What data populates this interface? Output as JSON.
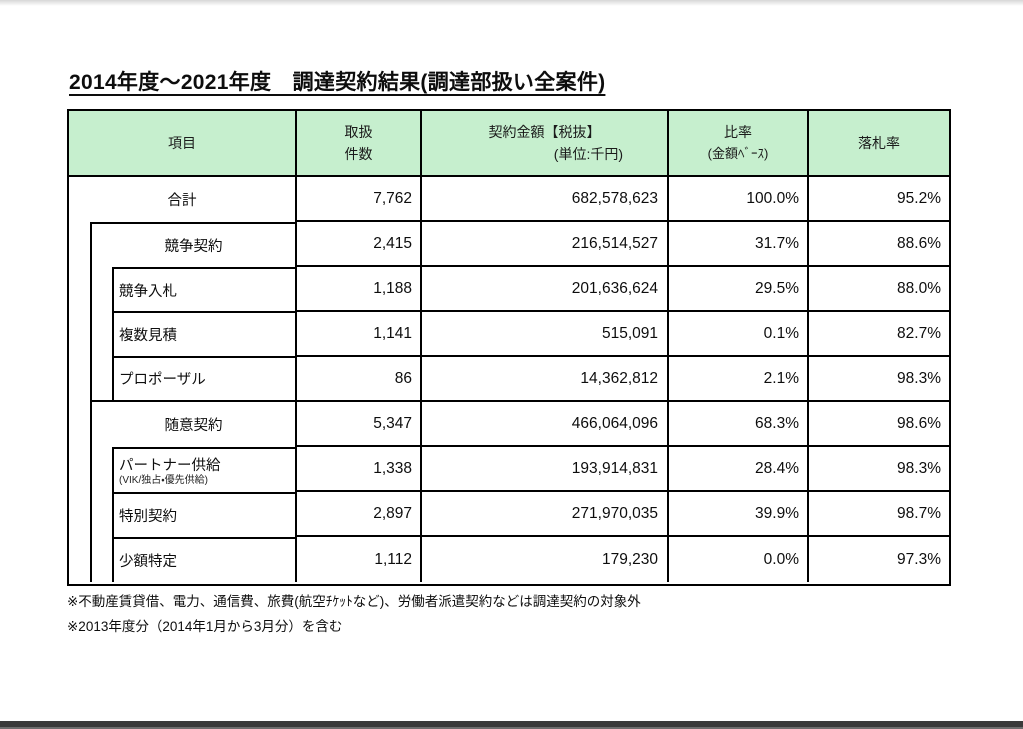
{
  "page": {
    "title": "2014年度～2021年度　調達契約結果(調達部扱い全案件)",
    "footnotes": [
      "※不動産賃貸借、電力、通信費、旅費(航空ﾁｹｯﾄなど)、労働者派遣契約などは調達契約の対象外",
      "※2013年度分（2014年1月から3月分）を含む"
    ]
  },
  "colors": {
    "header_bg": "#c6efce",
    "table_border": "#000000",
    "bottom_bar": "#3a3a3a"
  },
  "table": {
    "headers": {
      "item": "項目",
      "count_line1": "取扱",
      "count_line2": "件数",
      "amount_line1": "契約金額【税抜】",
      "amount_line2": "(単位:千円)",
      "ratio_line1": "比率",
      "ratio_line2": "(金額ﾍﾞｰｽ)",
      "rate": "落札率"
    },
    "rows": [
      {
        "label": "合計",
        "level": 0,
        "count": "7,762",
        "amount": "682,578,623",
        "ratio": "100.0%",
        "rate": "95.2%"
      },
      {
        "label": "競争契約",
        "level": 1,
        "count": "2,415",
        "amount": "216,514,527",
        "ratio": "31.7%",
        "rate": "88.6%"
      },
      {
        "label": "競争入札",
        "level": 2,
        "count": "1,188",
        "amount": "201,636,624",
        "ratio": "29.5%",
        "rate": "88.0%"
      },
      {
        "label": "複数見積",
        "level": 2,
        "count": "1,141",
        "amount": "515,091",
        "ratio": "0.1%",
        "rate": "82.7%"
      },
      {
        "label": "プロポーザル",
        "level": 2,
        "count": "86",
        "amount": "14,362,812",
        "ratio": "2.1%",
        "rate": "98.3%"
      },
      {
        "label": "随意契約",
        "level": 1,
        "count": "5,347",
        "amount": "466,064,096",
        "ratio": "68.3%",
        "rate": "98.6%"
      },
      {
        "label": "パートナー供給",
        "sublabel": "(VIK/独占・優先供給)",
        "level": 2,
        "count": "1,338",
        "amount": "193,914,831",
        "ratio": "28.4%",
        "rate": "98.3%"
      },
      {
        "label": "特別契約",
        "level": 2,
        "count": "2,897",
        "amount": "271,970,035",
        "ratio": "39.9%",
        "rate": "98.7%"
      },
      {
        "label": "少額特定",
        "level": 2,
        "count": "1,112",
        "amount": "179,230",
        "ratio": "0.0%",
        "rate": "97.3%"
      }
    ]
  }
}
